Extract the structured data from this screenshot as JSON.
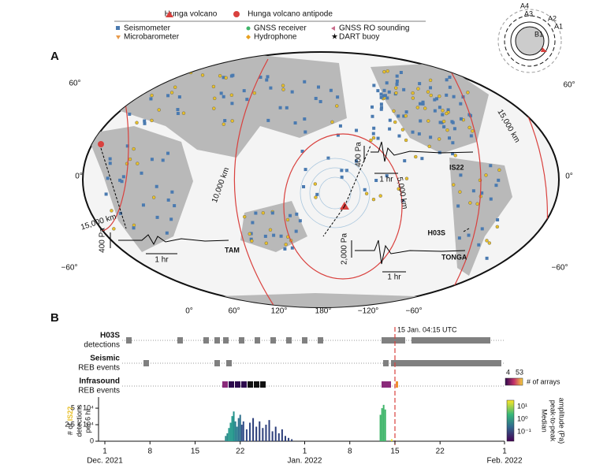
{
  "legend": {
    "volcano": "Hunga volcano",
    "antipode": "Hunga volcano antipode",
    "items": [
      "Seismometer",
      "GNSS receiver",
      "GNSS RO sounding",
      "Microbarometer",
      "Hydrophone",
      "DART buoy"
    ]
  },
  "panel_a": {
    "label": "A",
    "lat_labels_left": [
      "60°",
      "0°",
      "−60°"
    ],
    "lat_labels_right": [
      "60°",
      "0°",
      "−60°"
    ],
    "lon_labels": [
      "0°",
      "60°",
      "120°",
      "180°",
      "−120°",
      "−60°"
    ],
    "distance_labels": [
      "15,000 km",
      "10,000 km",
      "5,000 km",
      "15,000 km"
    ],
    "waveforms": [
      {
        "station": "TAM",
        "amplitude": "400 Pa",
        "duration": "1 hr"
      },
      {
        "station": "IS22",
        "amplitude": "400 Pa",
        "duration": "1 hr"
      },
      {
        "station": "TONGA",
        "amplitude": "2,000 Pa",
        "duration": "1 hr"
      }
    ],
    "hydrophone_label": "H03S",
    "inset": [
      "A4",
      "A3",
      "A2",
      "A1",
      "B1"
    ]
  },
  "panel_b": {
    "label": "B",
    "rows": [
      {
        "name": "H03S",
        "desc": "detections"
      },
      {
        "name": "Seismic",
        "desc": "REB events"
      },
      {
        "name": "Infrasound",
        "desc": "REB events"
      }
    ],
    "event_time": "15 Jan. 04:15 UTC",
    "array_colorbar": {
      "ticks": [
        "4",
        "53"
      ],
      "label": "# of arrays"
    },
    "amp_colorbar": {
      "ticks": [
        "10¹",
        "10⁰",
        "10⁻¹"
      ],
      "label": [
        "Median",
        "peak-to-peak",
        "amplitude (Pa)"
      ]
    },
    "ylabel": [
      "# of",
      "IS22",
      "detections",
      "per 6 hr"
    ]
  },
  "chart_data": {
    "type": "bar",
    "x": [
      18.75,
      19.0,
      19.25,
      19.5,
      19.75,
      20.0,
      20.25,
      20.5,
      20.75,
      21.0,
      21.25,
      21.5,
      22.0,
      22.5,
      23.0,
      23.5,
      24.0,
      24.5,
      25.0,
      25.5,
      26.0,
      26.5,
      27.0,
      27.5,
      28.0,
      28.5,
      29.0,
      42.75,
      43.0,
      43.25,
      43.5,
      44.5
    ],
    "values": [
      8000,
      12000,
      20000,
      28000,
      38000,
      45000,
      30000,
      22000,
      35000,
      40000,
      25000,
      30000,
      18000,
      28000,
      35000,
      22000,
      30000,
      20000,
      25000,
      32000,
      15000,
      22000,
      12000,
      18000,
      8000,
      5000,
      3000,
      40000,
      50000,
      55000,
      48000,
      3000
    ],
    "colors": [
      "#2a8a8a",
      "#2a8a8a",
      "#2a9d8f",
      "#2a9d8f",
      "#2a9d8f",
      "#23908a",
      "#2a7f8e",
      "#2a7f8e",
      "#2d6f8c",
      "#2d6f8c",
      "#33508a",
      "#33508a",
      "#334a86",
      "#334a86",
      "#2c3e7a",
      "#2c3e7a",
      "#2c3e7a",
      "#2c3e7a",
      "#2c3e7a",
      "#2c3e7a",
      "#2c3e7a",
      "#2c3e7a",
      "#2c3e7a",
      "#2c3e7a",
      "#2c3e7a",
      "#2c3e7a",
      "#2c3e7a",
      "#3fb56a",
      "#3fb56a",
      "#3fb56a",
      "#3fb56a",
      "#e8e02a"
    ],
    "xlim": [
      -1,
      63
    ],
    "xticks": [
      {
        "value": 0,
        "label": "1"
      },
      {
        "value": 7,
        "label": "8"
      },
      {
        "value": 14,
        "label": "15"
      },
      {
        "value": 21,
        "label": "22"
      },
      {
        "value": 31,
        "label": "1"
      },
      {
        "value": 38,
        "label": "8"
      },
      {
        "value": 45,
        "label": "15"
      },
      {
        "value": 52,
        "label": "22"
      },
      {
        "value": 62,
        "label": "1"
      }
    ],
    "xmonths": [
      {
        "value": 0,
        "label": "Dec. 2021"
      },
      {
        "value": 31,
        "label": "Jan. 2022"
      },
      {
        "value": 62,
        "label": "Feb. 2022"
      }
    ],
    "ylim": [
      0,
      62000
    ],
    "yticks": [
      0,
      {
        "value": 25000,
        "label": "2.5 × 10⁴"
      },
      {
        "value": 50000,
        "label": "5 × 10⁴"
      }
    ]
  }
}
